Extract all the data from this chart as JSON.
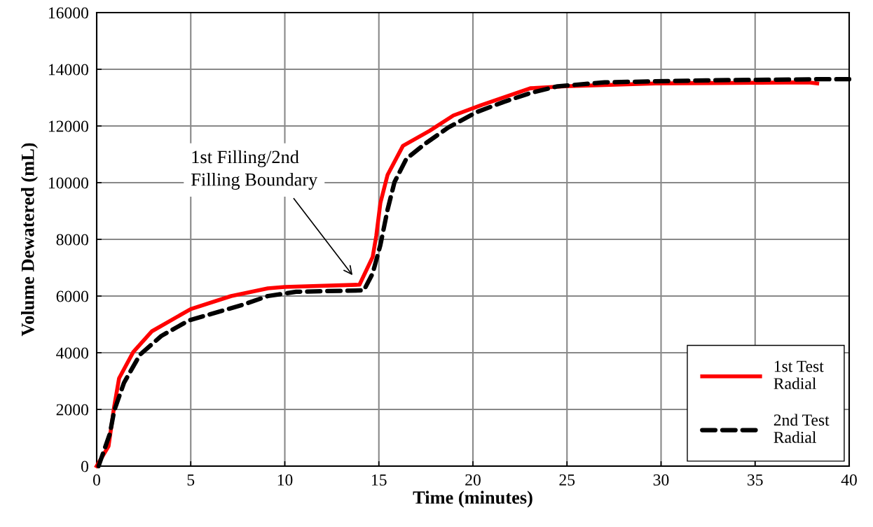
{
  "chart_data": {
    "type": "line",
    "xlabel": "Time (minutes)",
    "ylabel": "Volume Dewatered (mL)",
    "xlim": [
      0,
      40
    ],
    "xticks": [
      0,
      5,
      10,
      15,
      20,
      25,
      30,
      35,
      40
    ],
    "ylim": [
      0,
      16000
    ],
    "yticks": [
      0,
      2000,
      4000,
      6000,
      8000,
      10000,
      12000,
      14000,
      16000
    ],
    "grid": true,
    "legend": "bottom right",
    "marker": "none",
    "annotations": [
      "1st Filling/2nd\nFilling Boundary"
    ],
    "series": [
      {
        "name": "1st Test\nRadial",
        "color": "#ff0000",
        "line_style": "solid",
        "x": [
          0,
          0.63,
          0.93,
          1.19,
          1.94,
          2.94,
          5.0,
          7.15,
          9.1,
          10.0,
          13.97,
          14.67,
          14.86,
          15.08,
          15.46,
          16.28,
          17.7,
          18.96,
          20.45,
          23.05,
          24.9,
          29.7,
          37.85,
          38.3
        ],
        "values": [
          0,
          700,
          2100,
          3100,
          4020,
          4760,
          5540,
          6000,
          6270,
          6320,
          6400,
          7380,
          8120,
          9280,
          10270,
          11300,
          11830,
          12370,
          12740,
          13330,
          13400,
          13500,
          13540,
          13500
        ]
      },
      {
        "name": "2nd Test\nRadial",
        "color": "#000000",
        "line_style": "dashed",
        "x": [
          0.1,
          0.7,
          0.93,
          1.45,
          2.3,
          3.43,
          4.9,
          7.8,
          9.1,
          10.6,
          14.2,
          14.67,
          15.08,
          15.46,
          15.83,
          16.46,
          17.47,
          18.7,
          20.2,
          21.6,
          23.05,
          24.5,
          27.0,
          32.4,
          38.4,
          40
        ],
        "values": [
          0,
          1140,
          1950,
          2940,
          3930,
          4590,
          5140,
          5700,
          6000,
          6150,
          6200,
          6800,
          7800,
          9040,
          10020,
          10840,
          11380,
          11950,
          12490,
          12840,
          13160,
          13400,
          13540,
          13610,
          13650,
          13650
        ]
      }
    ]
  }
}
